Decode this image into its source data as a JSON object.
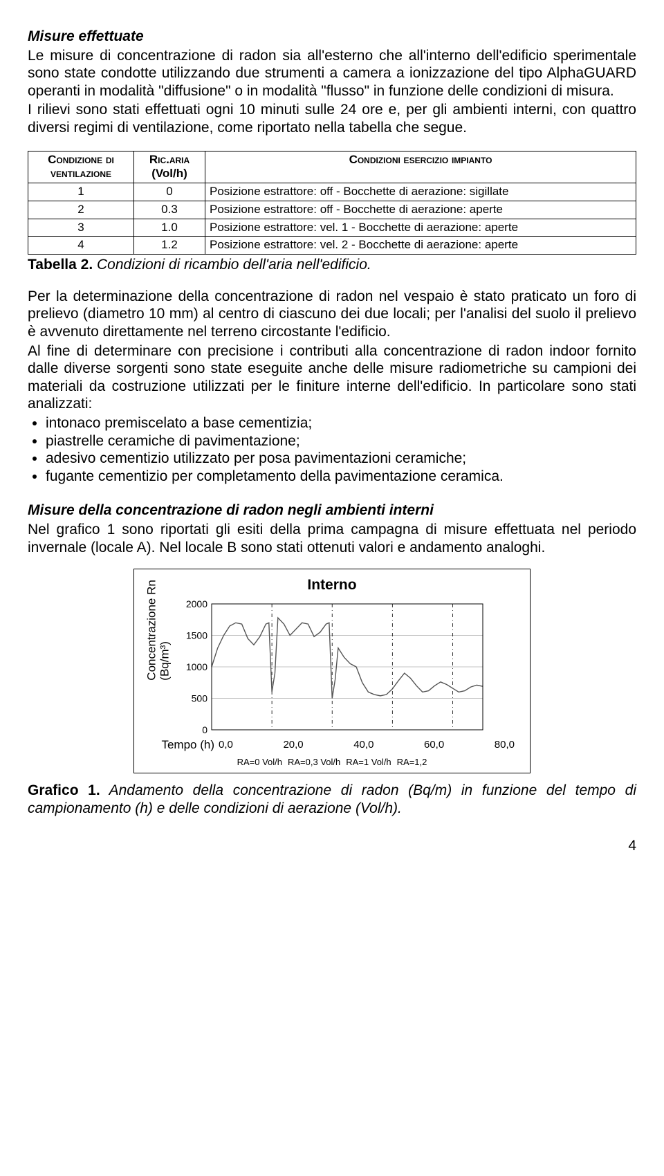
{
  "sec1_title": "Misure effettuate",
  "p1": "Le misure di concentrazione di radon sia all'esterno che all'interno dell'edificio sperimentale sono state condotte utilizzando due strumenti a camera a ionizzazione del tipo AlphaGUARD operanti in modalità \"diffusione\" o in modalità \"flusso\" in funzione delle condizioni di misura.",
  "p2": "I rilievi sono stati effettuati ogni 10 minuti sulle 24 ore e, per gli ambienti interni, con quattro diversi regimi di ventilazione, come riportato nella tabella che segue.",
  "t2_h1a": "Condizione di",
  "t2_h1b": "ventilazione",
  "t2_h2a": "Ric.aria",
  "t2_h2b": "(Vol/h)",
  "t2_h3": "Condizioni esercizio impianto",
  "t2_rows": [
    {
      "c": "1",
      "v": "0",
      "d": "Posizione estrattore: off - Bocchette di aerazione: sigillate"
    },
    {
      "c": "2",
      "v": "0.3",
      "d": "Posizione estrattore: off - Bocchette di aerazione: aperte"
    },
    {
      "c": "3",
      "v": "1.0",
      "d": "Posizione estrattore: vel. 1 - Bocchette di aerazione: aperte"
    },
    {
      "c": "4",
      "v": "1.2",
      "d": "Posizione estrattore: vel. 2 - Bocchette di aerazione: aperte"
    }
  ],
  "t2_cap_lead": "Tabella 2.",
  "t2_cap_rest": " Condizioni di ricambio dell'aria nell'edificio.",
  "p3": "Per la determinazione della concentrazione di radon nel vespaio è stato praticato un foro di prelievo (diametro 10 mm) al centro di ciascuno dei due locali; per l'analisi del suolo il prelievo è avvenuto direttamente nel terreno circostante l'edificio.",
  "p4": "Al fine di determinare con precisione i contributi alla concentrazione di radon indoor fornito dalle diverse sorgenti sono state eseguite anche delle misure radiometriche su campioni dei materiali da costruzione utilizzati per le finiture interne dell'edificio. In particolare sono stati analizzati:",
  "bul": [
    "intonaco premiscelato a base cementizia;",
    "piastrelle ceramiche di pavimentazione;",
    "adesivo cementizio utilizzato per posa pavimentazioni ceramiche;",
    "fugante cementizio per completamento della pavimentazione ceramica."
  ],
  "sec2_title": "Misure della concentrazione di radon negli ambienti interni",
  "p5": "Nel grafico 1 sono riportati gli esiti della prima campagna di misure effettuata nel periodo invernale (locale A). Nel locale B sono stati ottenuti valori e andamento analoghi.",
  "chart": {
    "title": "Interno",
    "ylabel_1": "Concentrazione Rn",
    "ylabel_2": "(Bq/m³)",
    "xlabel": "Tempo (h)",
    "ylim": [
      0,
      2000
    ],
    "yticks": [
      0,
      500,
      1000,
      1500,
      2000
    ],
    "xlim": [
      0,
      90
    ],
    "xticks": [
      "0,0",
      "20,0",
      "40,0",
      "60,0",
      "80,0"
    ],
    "grid_color": "#888",
    "frame": "#000",
    "bg": "#fff",
    "vlines": [
      20,
      40,
      60,
      80
    ],
    "line_color": "#555",
    "line_width": 1.4,
    "points": [
      [
        0,
        1000
      ],
      [
        2,
        1300
      ],
      [
        4,
        1500
      ],
      [
        6,
        1650
      ],
      [
        8,
        1700
      ],
      [
        10,
        1680
      ],
      [
        12,
        1450
      ],
      [
        14,
        1350
      ],
      [
        16,
        1480
      ],
      [
        18,
        1680
      ],
      [
        19,
        1700
      ],
      [
        20,
        600
      ],
      [
        21,
        900
      ],
      [
        22,
        1780
      ],
      [
        24,
        1680
      ],
      [
        26,
        1500
      ],
      [
        28,
        1600
      ],
      [
        30,
        1700
      ],
      [
        32,
        1680
      ],
      [
        34,
        1480
      ],
      [
        36,
        1550
      ],
      [
        38,
        1680
      ],
      [
        39,
        1700
      ],
      [
        40,
        500
      ],
      [
        41,
        800
      ],
      [
        42,
        1300
      ],
      [
        44,
        1150
      ],
      [
        46,
        1050
      ],
      [
        48,
        1000
      ],
      [
        50,
        750
      ],
      [
        52,
        600
      ],
      [
        54,
        560
      ],
      [
        56,
        540
      ],
      [
        58,
        560
      ],
      [
        60,
        650
      ],
      [
        62,
        780
      ],
      [
        64,
        900
      ],
      [
        66,
        820
      ],
      [
        68,
        700
      ],
      [
        70,
        600
      ],
      [
        72,
        620
      ],
      [
        74,
        700
      ],
      [
        76,
        760
      ],
      [
        78,
        720
      ],
      [
        80,
        660
      ],
      [
        82,
        600
      ],
      [
        84,
        620
      ],
      [
        86,
        680
      ],
      [
        88,
        710
      ],
      [
        90,
        690
      ]
    ],
    "legend": [
      "RA=0 Vol/h",
      "RA=0,3 Vol/h",
      "RA=1 Vol/h",
      "RA=1,2"
    ]
  },
  "g1_cap_lead": "Grafico 1.",
  "g1_cap_rest": " Andamento della concentrazione di radon (Bq/m) in funzione del tempo di campionamento (h) e delle condizioni di aerazione (Vol/h).",
  "pagenum": "4"
}
